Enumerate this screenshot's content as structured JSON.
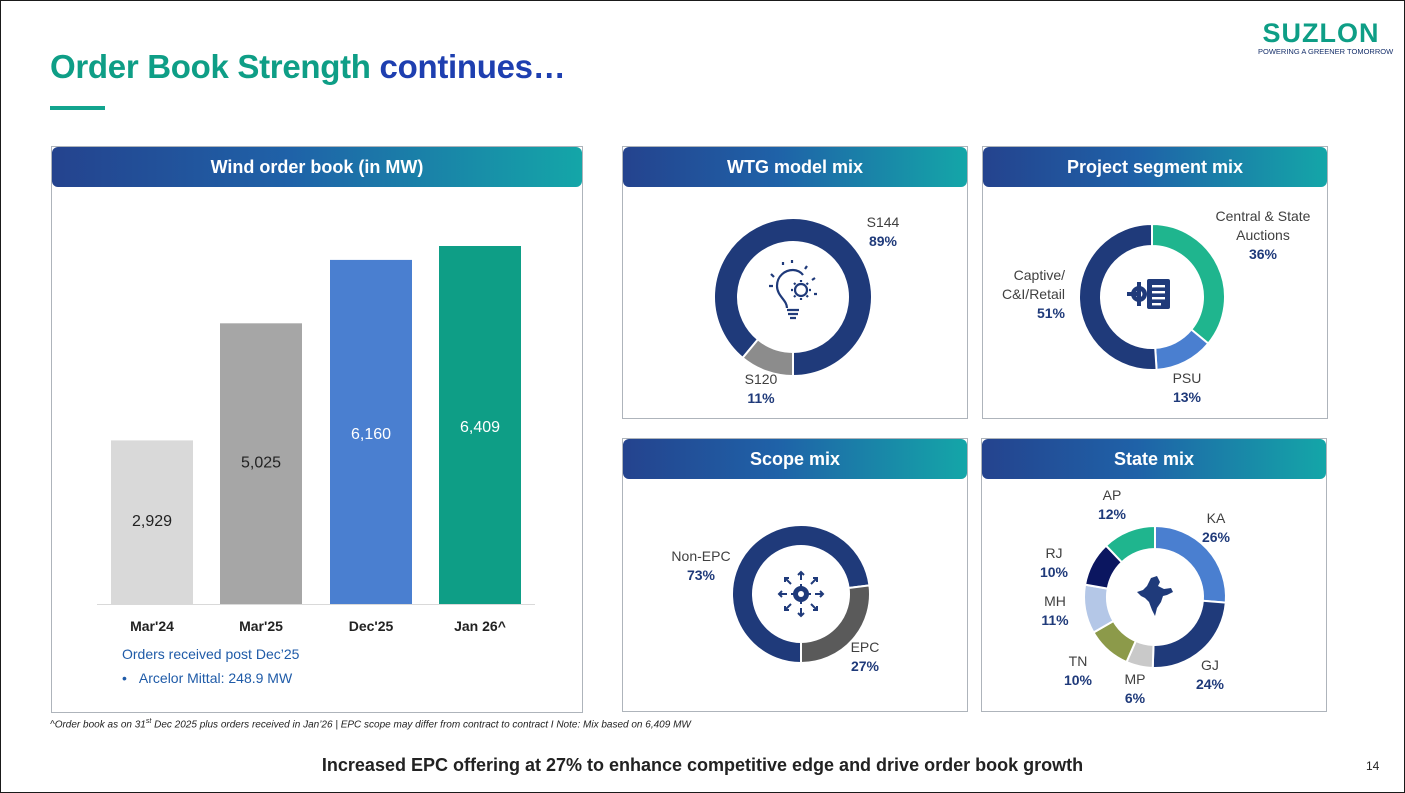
{
  "title": {
    "part1": "Order Book Strength",
    "part2": "continues…"
  },
  "logo": {
    "word": "SUZLON",
    "tagline": "POWERING A GREENER TOMORROW"
  },
  "colors": {
    "teal": "#0E9E86",
    "navy": "#1F3A7A",
    "blue": "#4A7FD0",
    "bar_light": "#D9D9D9",
    "bar_gray": "#A6A6A6"
  },
  "chart_data": [
    {
      "type": "bar",
      "title": "Wind order book (in MW)",
      "categories": [
        "Mar'24",
        "Mar'25",
        "Dec'25",
        "Jan 26^"
      ],
      "values": [
        2929,
        5025,
        6160,
        6409
      ],
      "value_labels": [
        "2,929",
        "5,025",
        "6,160",
        "6,409"
      ],
      "bar_colors": [
        "#D9D9D9",
        "#A6A6A6",
        "#4A7FD0",
        "#0E9E86"
      ],
      "ylim": [
        0,
        6409
      ]
    },
    {
      "type": "pie",
      "title": "WTG model mix",
      "icon": "lightbulb-gear-icon",
      "slices": [
        {
          "label": "S144",
          "value": 89,
          "pct": "89%",
          "color": "#1F3A7A"
        },
        {
          "label": "S120",
          "value": 11,
          "pct": "11%",
          "color": "#8C8C8C"
        }
      ]
    },
    {
      "type": "pie",
      "title": "Project segment mix",
      "icon": "gear-document-icon",
      "slices": [
        {
          "label": "Central & State Auctions",
          "value": 36,
          "pct": "36%",
          "color": "#1FB58E"
        },
        {
          "label": "PSU",
          "value": 13,
          "pct": "13%",
          "color": "#4A7FD0"
        },
        {
          "label": "Captive/ C&I/Retail",
          "value": 51,
          "pct": "51%",
          "color": "#1F3A7A"
        }
      ]
    },
    {
      "type": "pie",
      "title": "Scope mix",
      "icon": "gear-arrows-icon",
      "slices": [
        {
          "label": "Non-EPC",
          "value": 73,
          "pct": "73%",
          "color": "#1F3A7A"
        },
        {
          "label": "EPC",
          "value": 27,
          "pct": "27%",
          "color": "#5A5A5A"
        }
      ]
    },
    {
      "type": "pie",
      "title": "State mix",
      "icon": "india-map-icon",
      "slices": [
        {
          "label": "KA",
          "value": 26,
          "pct": "26%",
          "color": "#4A7FD0"
        },
        {
          "label": "GJ",
          "value": 24,
          "pct": "24%",
          "color": "#1F3A7A"
        },
        {
          "label": "MP",
          "value": 6,
          "pct": "6%",
          "color": "#C9C9C9"
        },
        {
          "label": "TN",
          "value": 10,
          "pct": "10%",
          "color": "#8C9A4A"
        },
        {
          "label": "MH",
          "value": 11,
          "pct": "11%",
          "color": "#B4C7E7"
        },
        {
          "label": "RJ",
          "value": 10,
          "pct": "10%",
          "color": "#0B1660"
        },
        {
          "label": "AP",
          "value": 12,
          "pct": "12%",
          "color": "#1FB58E"
        }
      ]
    }
  ],
  "orders_note": {
    "heading": "Orders received post Dec’25",
    "bullet": "•",
    "item": "Arcelor Mittal: 248.9 MW"
  },
  "footnote": {
    "caret": "^",
    "text_a": "Order book as on 31",
    "sup": "st",
    "text_b": " Dec 2025 plus orders received  in Jan’26 | EPC scope may differ from contract to contract I Note: Mix based on 6,409 MW"
  },
  "bottom_line": "Increased EPC offering at 27% to enhance competitive edge and drive order book growth",
  "page_number": "14"
}
